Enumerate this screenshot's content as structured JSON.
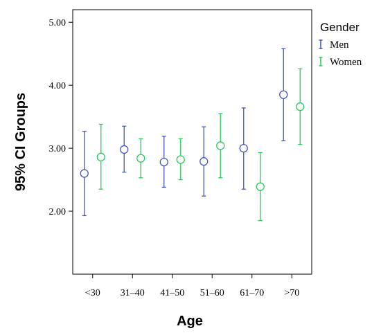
{
  "chart_data": {
    "type": "errorbar",
    "xlabel": "Age",
    "ylabel": "95% CI Groups",
    "categories": [
      "<30",
      "31–40",
      "41–50",
      "51–60",
      "61–70",
      ">70"
    ],
    "ylim": [
      1.0,
      5.2
    ],
    "yticks": [
      "2.00",
      "3.00",
      "4.00",
      "5.00"
    ],
    "ytick_values": [
      2.0,
      3.0,
      4.0,
      5.0
    ],
    "grid": false,
    "legend": {
      "title": "Gender",
      "placement": "right-top"
    },
    "series": [
      {
        "name": "Men",
        "color": "#4455bb",
        "mean": [
          2.6,
          2.98,
          2.78,
          2.79,
          3.0,
          3.85
        ],
        "lower": [
          1.93,
          2.62,
          2.38,
          2.24,
          2.35,
          3.12
        ],
        "upper": [
          3.27,
          3.35,
          3.19,
          3.34,
          3.64,
          4.58
        ]
      },
      {
        "name": "Women",
        "color": "#22cc55",
        "mean": [
          2.86,
          2.84,
          2.82,
          3.04,
          2.39,
          3.66
        ],
        "lower": [
          2.35,
          2.53,
          2.5,
          2.53,
          1.85,
          3.06
        ],
        "upper": [
          3.38,
          3.15,
          3.15,
          3.55,
          2.93,
          4.26
        ]
      }
    ]
  }
}
